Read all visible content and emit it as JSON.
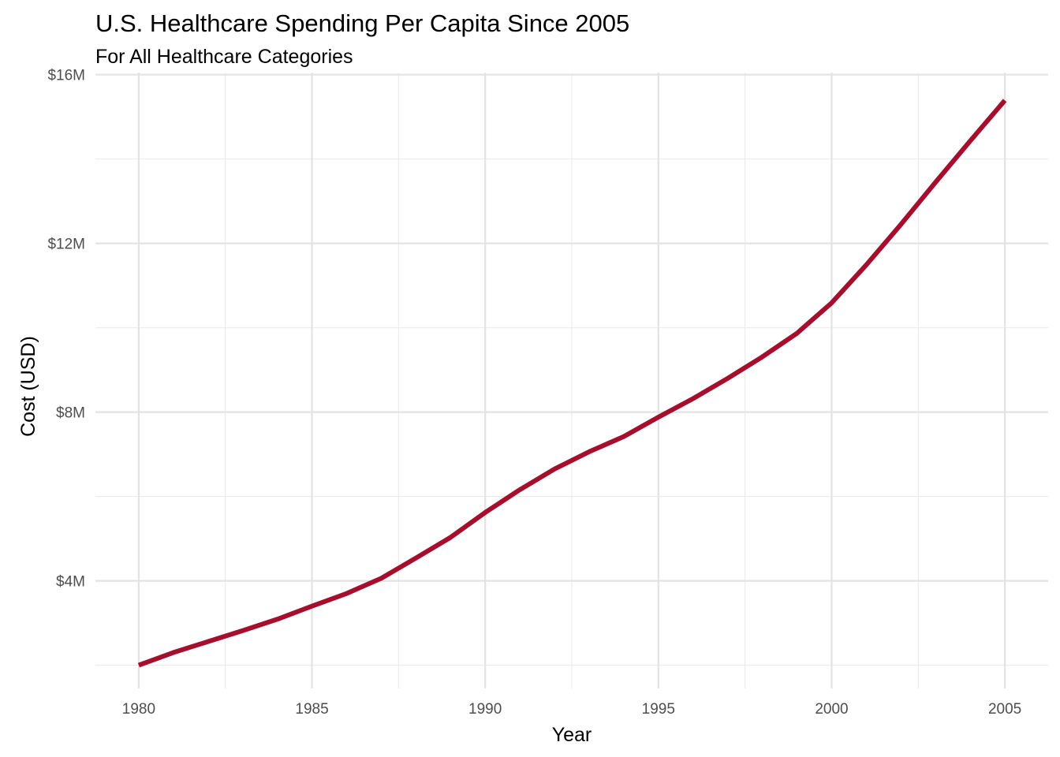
{
  "chart_data": {
    "type": "line",
    "title": "U.S. Healthcare Spending Per Capita Since 2005",
    "subtitle": "For All Healthcare Categories",
    "xlabel": "Year",
    "ylabel": "Cost (USD)",
    "xlim": [
      1978.75,
      2006.25
    ],
    "ylim": [
      1450000,
      16050000
    ],
    "x_ticks": [
      1980,
      1985,
      1990,
      1995,
      2000,
      2005
    ],
    "y_ticks": [
      4000000,
      8000000,
      12000000,
      16000000
    ],
    "y_tick_labels": [
      "$4M",
      "$8M",
      "$12M",
      "$16M"
    ],
    "grid": true,
    "legend": "none",
    "series": [
      {
        "color": "#A50F2D",
        "x": [
          1980,
          1981,
          1982,
          1983,
          1984,
          1985,
          1986,
          1987,
          1988,
          1989,
          1990,
          1991,
          1992,
          1993,
          1994,
          1995,
          1996,
          1997,
          1998,
          1999,
          2000,
          2001,
          2002,
          2003,
          2004,
          2005
        ],
        "values": [
          2000000,
          2300000,
          2560000,
          2820000,
          3090000,
          3400000,
          3700000,
          4060000,
          4540000,
          5030000,
          5620000,
          6160000,
          6650000,
          7060000,
          7420000,
          7880000,
          8320000,
          8800000,
          9310000,
          9870000,
          10590000,
          11490000,
          12450000,
          13450000,
          14430000,
          15390000
        ]
      }
    ]
  }
}
